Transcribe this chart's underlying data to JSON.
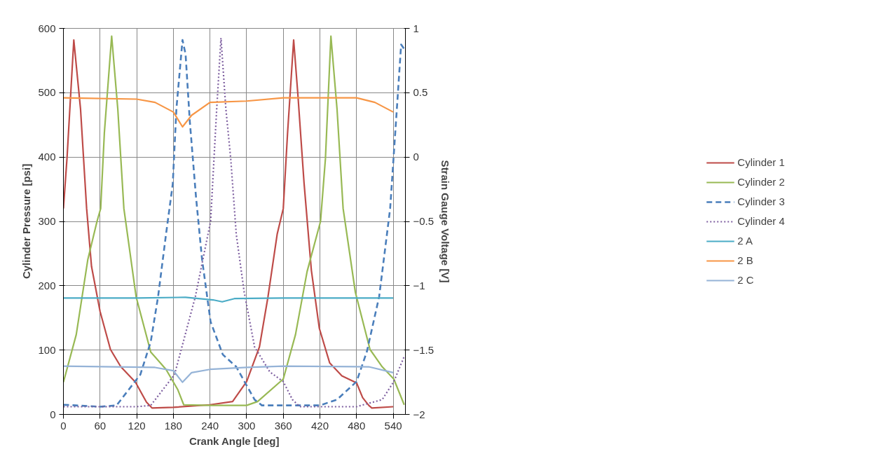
{
  "chart_data": {
    "type": "line",
    "xlabel": "Crank Angle [deg]",
    "ylabel": "Cylinder Pressure [psi]",
    "y2label": "Strain Gauge Voltage [V]",
    "xlim": [
      0,
      560
    ],
    "xticks": [
      0,
      60,
      120,
      180,
      240,
      300,
      360,
      420,
      480,
      540
    ],
    "ylim": [
      0,
      600
    ],
    "yticks": [
      0,
      100,
      200,
      300,
      400,
      500,
      600
    ],
    "y2lim": [
      -2,
      1
    ],
    "y2ticks": [
      -2,
      -1.5,
      -1,
      -0.5,
      0,
      0.5,
      1
    ],
    "grid": true,
    "legend": "right",
    "marker": "none",
    "series": [
      {
        "name": "Cylinder 1",
        "color": "#be4b48",
        "line_style": "solid",
        "x": [
          0,
          6,
          17,
          28,
          38,
          46,
          60,
          77,
          94,
          118,
          129,
          136,
          145,
          180,
          240,
          277,
          300,
          321,
          335,
          350,
          360,
          367,
          377,
          384,
          394,
          406,
          419,
          436,
          456,
          480,
          490,
          500,
          505,
          540
        ],
        "values": [
          320,
          400,
          582,
          475,
          320,
          230,
          160,
          101,
          74,
          50,
          31,
          19,
          10,
          11,
          15,
          20,
          51,
          105,
          183,
          280,
          320,
          437,
          582,
          496,
          360,
          224,
          134,
          80,
          60,
          49,
          26,
          14,
          10,
          12
        ]
      },
      {
        "name": "Cylinder 2",
        "color": "#98b954",
        "line_style": "solid",
        "x": [
          0,
          21,
          40,
          55,
          61,
          67,
          79,
          89,
          99,
          119,
          143,
          168,
          187,
          197,
          240,
          300,
          318,
          360,
          380,
          399,
          421,
          429,
          438,
          448,
          458,
          478,
          502,
          522,
          541,
          558
        ],
        "values": [
          50,
          124,
          241,
          300,
          320,
          437,
          588,
          475,
          320,
          183,
          97,
          70,
          39,
          15,
          14,
          14,
          20,
          55,
          124,
          222,
          300,
          397,
          588,
          475,
          320,
          190,
          101,
          74,
          55,
          15
        ]
      },
      {
        "name": "Cylinder 3",
        "color": "#4a7ebb",
        "line_style": "dashed",
        "x": [
          0,
          60,
          87,
          126,
          143,
          155,
          168,
          179,
          185,
          195,
          200,
          207,
          217,
          227,
          241,
          261,
          283,
          313,
          325,
          420,
          448,
          480,
          497,
          517,
          535,
          546,
          553,
          558
        ],
        "values": [
          15,
          12,
          14,
          62,
          113,
          183,
          280,
          358,
          475,
          582,
          560,
          455,
          339,
          241,
          144,
          93,
          74,
          23,
          14,
          14,
          23,
          51,
          98,
          183,
          320,
          475,
          575,
          568
        ]
      },
      {
        "name": "Cylinder 4",
        "color": "#7e5fa0",
        "line_style": "dotted",
        "x": [
          0,
          120,
          143,
          182,
          216,
          241,
          251,
          258,
          266,
          274,
          283,
          296,
          313,
          338,
          360,
          375,
          387,
          480,
          522,
          541,
          558
        ],
        "values": [
          12,
          12,
          14,
          62,
          183,
          300,
          475,
          585,
          475,
          397,
          280,
          190,
          105,
          66,
          51,
          23,
          12,
          12,
          23,
          51,
          90
        ]
      },
      {
        "name": "2 A",
        "color": "#4bacc6",
        "line_style": "solid",
        "axis": "y2",
        "x": [
          0,
          120,
          200,
          245,
          260,
          280,
          360,
          540
        ],
        "values": [
          -1.095,
          -1.095,
          -1.09,
          -1.11,
          -1.125,
          -1.1,
          -1.095,
          -1.095
        ]
      },
      {
        "name": "2 B",
        "color": "#f79646",
        "line_style": "solid",
        "axis": "y2",
        "x": [
          0,
          120,
          150,
          180,
          195,
          210,
          240,
          300,
          360,
          480,
          510,
          540
        ],
        "values": [
          0.46,
          0.45,
          0.425,
          0.35,
          0.235,
          0.325,
          0.425,
          0.435,
          0.46,
          0.46,
          0.425,
          0.35
        ]
      },
      {
        "name": "2 C",
        "color": "#95b3d7",
        "line_style": "solid",
        "axis": "y2",
        "x": [
          0,
          150,
          180,
          195,
          210,
          240,
          300,
          360,
          500,
          540
        ],
        "values": [
          -1.625,
          -1.635,
          -1.66,
          -1.75,
          -1.675,
          -1.65,
          -1.635,
          -1.625,
          -1.63,
          -1.675
        ]
      }
    ]
  }
}
